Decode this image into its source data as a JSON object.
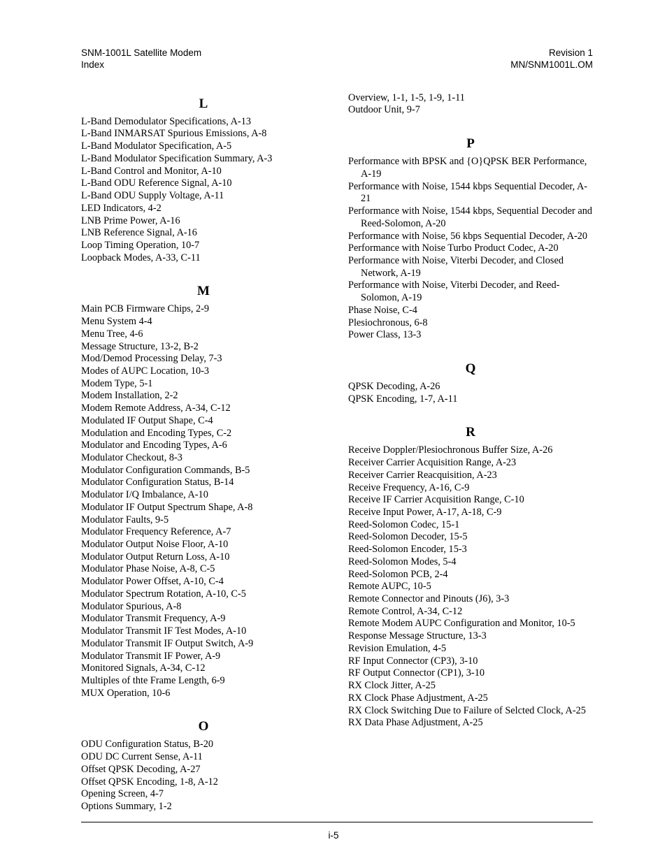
{
  "header": {
    "left_line1": "SNM-1001L Satellite Modem",
    "left_line2": "Index",
    "right_line1": "Revision 1",
    "right_line2": "MN/SNM1001L.OM"
  },
  "footer": {
    "page_number": "i-5"
  },
  "left_column": [
    {
      "title": "L",
      "entries": [
        "L-Band Demodulator Specifications, A-13",
        "L-Band INMARSAT Spurious Emissions, A-8",
        "L-Band Modulator Specification, A-5",
        "L-Band Modulator Specification Summary, A-3",
        "L-Band Control and Monitor, A-10",
        "L-Band ODU Reference Signal, A-10",
        "L-Band ODU Supply Voltage, A-11",
        "LED Indicators, 4-2",
        "LNB Prime Power, A-16",
        "LNB Reference Signal, A-16",
        "Loop Timing Operation, 10-7",
        "Loopback Modes, A-33, C-11"
      ]
    },
    {
      "title": "M",
      "entries": [
        "Main PCB Firmware Chips, 2-9",
        "Menu System 4-4",
        "Menu Tree, 4-6",
        "Message Structure, 13-2, B-2",
        "Mod/Demod Processing Delay, 7-3",
        "Modes of AUPC Location, 10-3",
        "Modem Type, 5-1",
        "Modem Installation, 2-2",
        "Modem Remote Address, A-34, C-12",
        "Modulated IF Output Shape, C-4",
        "Modulation and Encoding Types, C-2",
        "Modulator and Encoding Types, A-6",
        "Modulator Checkout, 8-3",
        "Modulator Configuration Commands, B-5",
        "Modulator Configuration Status, B-14",
        "Modulator I/Q Imbalance, A-10",
        "Modulator IF Output Spectrum Shape, A-8",
        "Modulator Faults, 9-5",
        "Modulator Frequency Reference, A-7",
        "Modulator Output Noise Floor, A-10",
        "Modulator Output Return Loss, A-10",
        "Modulator Phase Noise, A-8, C-5",
        "Modulator Power Offset, A-10, C-4",
        "Modulator Spectrum Rotation, A-10, C-5",
        "Modulator Spurious, A-8",
        "Modulator Transmit Frequency, A-9",
        "Modulator Transmit IF Test Modes, A-10",
        "Modulator Transmit IF Output Switch, A-9",
        "Modulator Transmit IF Power, A-9",
        "Monitored Signals, A-34, C-12",
        "Multiples of thte Frame Length, 6-9",
        "MUX Operation, 10-6"
      ]
    },
    {
      "title": "O",
      "entries": [
        "ODU Configuration Status, B-20",
        "ODU DC Current Sense, A-11",
        "Offset QPSK Decoding, A-27",
        "Offset QPSK Encoding, 1-8, A-12",
        "Opening Screen, 4-7",
        "Options Summary, 1-2"
      ]
    }
  ],
  "right_column": [
    {
      "title": "",
      "entries": [
        "Overview, 1-1, 1-5, 1-9, 1-11",
        "Outdoor Unit, 9-7"
      ]
    },
    {
      "title": "P",
      "entries": [
        "Performance with BPSK and {O}QPSK BER Performance, A-19",
        "Performance with Noise, 1544 kbps Sequential Decoder, A-21",
        "Performance with Noise, 1544 kbps, Sequential Decoder and Reed-Solomon, A-20",
        "Performance with Noise, 56 kbps Sequential Decoder, A-20",
        "Performance with Noise Turbo Product Codec, A-20",
        "Performance with Noise, Viterbi Decoder, and Closed Network, A-19",
        "Performance with Noise, Viterbi Decoder, and Reed-Solomon, A-19",
        "Phase Noise, C-4",
        "Plesiochronous, 6-8",
        "Power Class, 13-3"
      ]
    },
    {
      "title": "Q",
      "entries": [
        "QPSK Decoding, A-26",
        "QPSK Encoding, 1-7, A-11"
      ]
    },
    {
      "title": "R",
      "entries": [
        "Receive Doppler/Plesiochronous Buffer Size, A-26",
        "Receiver Carrier Acquisition Range, A-23",
        "Receiver Carrier Reacquisition, A-23",
        "Receive Frequency, A-16, C-9",
        "Receive IF Carrier Acquisition Range, C-10",
        "Receive Input Power, A-17, A-18, C-9",
        "Reed-Solomon Codec, 15-1",
        "Reed-Solomon Decoder, 15-5",
        "Reed-Solomon Encoder, 15-3",
        "Reed-Solomon Modes, 5-4",
        "Reed-Solomon PCB, 2-4",
        "Remote AUPC, 10-5",
        "Remote Connector and Pinouts (J6), 3-3",
        "Remote Control, A-34, C-12",
        "Remote Modem AUPC Configuration and Monitor, 10-5",
        "Response Message Structure, 13-3",
        "Revision Emulation, 4-5",
        "RF Input Connector (CP3), 3-10",
        "RF Output Connector (CP1), 3-10",
        "RX Clock Jitter, A-25",
        "RX Clock Phase Adjustment, A-25",
        "RX Clock Switching Due to Failure of Selcted Clock, A-25",
        "RX Data Phase Adjustment, A-25"
      ]
    }
  ]
}
